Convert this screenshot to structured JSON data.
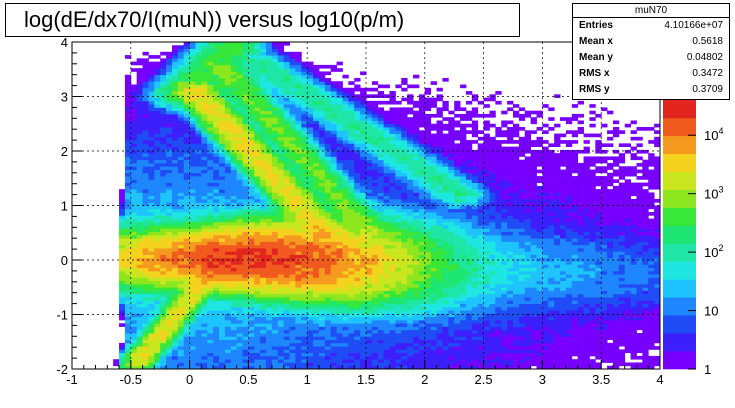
{
  "title": "log(dE/dx70/I(muN)) versus log10(p/m)",
  "stats": {
    "name": "muN70",
    "rows": [
      {
        "label": "Entries",
        "value": "4.10166e+07"
      },
      {
        "label": "Mean x",
        "value": "0.5618"
      },
      {
        "label": "Mean y",
        "value": "0.04802"
      },
      {
        "label": "RMS x",
        "value": "0.3472"
      },
      {
        "label": "RMS y",
        "value": "0.3709"
      }
    ]
  },
  "chart_data": {
    "type": "heatmap",
    "title": "log(dE/dx70/I(muN)) versus log10(p/m)",
    "xlabel": "",
    "ylabel": "",
    "xlim": [
      -1,
      4
    ],
    "ylim": [
      -2,
      4
    ],
    "x_ticks": [
      "-1",
      "-0.5",
      "0",
      "0.5",
      "1",
      "1.5",
      "2",
      "2.5",
      "3",
      "3.5",
      "4"
    ],
    "y_ticks": [
      "-2",
      "-1",
      "0",
      "1",
      "2",
      "3",
      "4"
    ],
    "grid": true,
    "z_scale": "log",
    "z_range": [
      1,
      40000
    ],
    "palette": [
      "#7700ff",
      "#3c1ffb",
      "#1f4cf5",
      "#1e86ff",
      "#1ec4ff",
      "#1ee6e0",
      "#1ee6a6",
      "#1ee673",
      "#39e63a",
      "#8de61e",
      "#c9e61e",
      "#f3d31e",
      "#f59a1e",
      "#f05a1e",
      "#e2251e"
    ],
    "colorbar_labels": [
      {
        "base": "1",
        "exp": "",
        "value": 1
      },
      {
        "base": "10",
        "exp": "",
        "value": 10
      },
      {
        "base": "10",
        "exp": "2",
        "value": 100
      },
      {
        "base": "10",
        "exp": "3",
        "value": 1000
      },
      {
        "base": "10",
        "exp": "4",
        "value": 10000
      }
    ],
    "features": [
      {
        "name": "minimum-ionizing band",
        "x": [
          0.0,
          3.8
        ],
        "y": [
          0.0,
          -0.35
        ],
        "peak_at": [
          0.6,
          0.0
        ]
      },
      {
        "name": "proton band",
        "x": [
          -0.45,
          0.45
        ],
        "y": [
          -1.9,
          0.1
        ]
      },
      {
        "name": "deuteron band",
        "x": [
          0.05,
          1.15
        ],
        "y": [
          3.1,
          0.5
        ]
      },
      {
        "name": "triton band",
        "x": [
          0.3,
          1.5
        ],
        "y": [
          3.5,
          0.6
        ]
      },
      {
        "name": "helium band",
        "x": [
          0.6,
          2.3
        ],
        "y": [
          3.6,
          1.2
        ]
      }
    ]
  }
}
